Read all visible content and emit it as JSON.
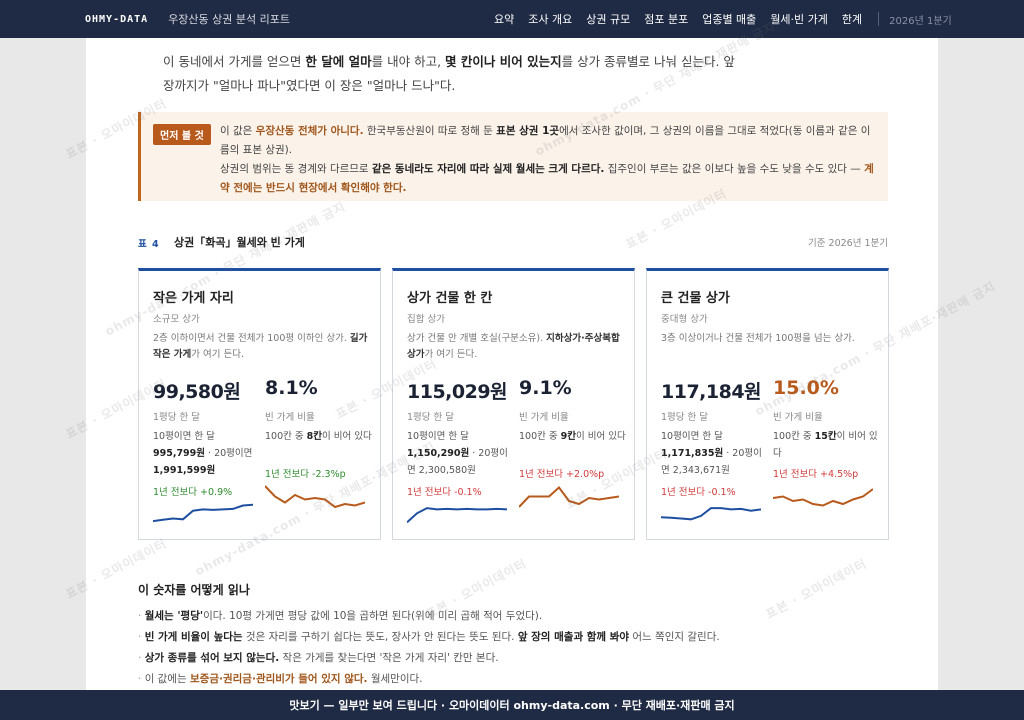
{
  "header": {
    "brand": "OHMY-DATA",
    "subtitle": "우장산동 상권 분석 리포트",
    "nav": [
      "요약",
      "조사 개요",
      "상권 규모",
      "점포 분포",
      "업종별 매출",
      "월세·빈 가게",
      "한계"
    ],
    "date": "2026년 1분기"
  },
  "intro": {
    "p1a": "이 동네에서 가게를 얻으면 ",
    "p1b": "한 달에 얼마",
    "p1c": "를 내야 하고, ",
    "p1d": "몇 칸이나 비어 있는지",
    "p1e": "를 상가 종류별로 나눠 싣는다. 앞",
    "p2": "장까지가 \"얼마나 파나\"였다면 이 장은 \"얼마나 드나\"다."
  },
  "notice": {
    "tag": "먼저 볼 것",
    "s1": "이 값은 ",
    "s2": "우장산동 전체가 아니다.",
    "s3": " 한국부동산원이 따로 정해 둔 ",
    "s4": "표본 상권 1곳",
    "s5": "에서 조사한 값이며, 그 상권의 이름을 그대로 적었다(동 이름과 같은 이름의 표본 상권).",
    "s6": "상권의 범위는 동 경계와 다르므로 ",
    "s7": "같은 동네라도 자리에 따라 실제 월세는 크게 다르다.",
    "s8": " 집주인이 부르는 값은 이보다 높을 수도 낮을 수도 있다 — ",
    "s9": "계약 전에는 반드시 현장에서 확인해야 한다."
  },
  "table": {
    "no": "표 4",
    "title": "상권「화곡」월세와 빈 가게",
    "base": "기준 2026년 1분기"
  },
  "cards": [
    {
      "title": "작은 가게 자리",
      "sub": "소규모 상가",
      "desc_a": "2층 이하이면서 건물 전체가 100평 이하인 상가. ",
      "desc_b": "길가 작은 가게",
      "desc_c": "가 여기 든다.",
      "rent": "99,580원",
      "rent_label": "1평당 한 달",
      "vac": "8.1%",
      "vac_label": "빈 가게 비율",
      "rent_detail_a": "10평이면 한 달 ",
      "rent_detail_b": "995,799원",
      "rent_detail_c": " · 20평이면 ",
      "rent_detail_d": "1,991,599원",
      "rent_change": "1년 전보다 +0.9%",
      "vac_detail_a": "100칸 중 ",
      "vac_detail_b": "8칸",
      "vac_detail_c": "이 비어 있다",
      "vac_change": "1년 전보다 -2.3%p",
      "rent_trend": [
        0.15,
        0.2,
        0.25,
        0.22,
        0.55,
        0.6,
        0.58,
        0.6,
        0.62,
        0.75,
        0.78
      ],
      "vac_trend": [
        0.9,
        0.55,
        0.35,
        0.6,
        0.45,
        0.5,
        0.45,
        0.2,
        0.3,
        0.25,
        0.35
      ],
      "rent_change_dir": "up",
      "vac_change_dir": "up",
      "vac_hot": false
    },
    {
      "title": "상가 건물 한 칸",
      "sub": "집합 상가",
      "desc_a": "상가 건물 안 개별 호실(구분소유). ",
      "desc_b": "지하상가·주상복합 상가",
      "desc_c": "가 여기 든다.",
      "rent": "115,029원",
      "rent_label": "1평당 한 달",
      "vac": "9.1%",
      "vac_label": "빈 가게 비율",
      "rent_detail_a": "10평이면 한 달 ",
      "rent_detail_b": "1,150,290원",
      "rent_detail_c": " · 20평이면 ",
      "rent_detail_d": "2,300,580원",
      "rent_change": "1년 전보다 -0.1%",
      "vac_detail_a": "100칸 중 ",
      "vac_detail_b": "9칸",
      "vac_detail_c": "이 비어 있다",
      "vac_change": "1년 전보다 +2.0%p",
      "rent_trend": [
        0.1,
        0.45,
        0.65,
        0.6,
        0.62,
        0.6,
        0.62,
        0.6,
        0.6,
        0.62,
        0.6
      ],
      "vac_trend": [
        0.2,
        0.55,
        0.55,
        0.55,
        0.85,
        0.4,
        0.3,
        0.5,
        0.45,
        0.5,
        0.55
      ],
      "rent_change_dir": "down",
      "vac_change_dir": "down",
      "vac_hot": false
    },
    {
      "title": "큰 건물 상가",
      "sub": "중대형 상가",
      "desc_a": "3층 이상이거나 건물 전체가 100평을 넘는 상가.",
      "desc_b": "",
      "desc_c": "",
      "rent": "117,184원",
      "rent_label": "1평당 한 달",
      "vac": "15.0%",
      "vac_label": "빈 가게 비율",
      "rent_detail_a": "10평이면 한 달 ",
      "rent_detail_b": "1,171,835원",
      "rent_detail_c": " · 20평이면 ",
      "rent_detail_d": "2,343,671원",
      "rent_change": "1년 전보다 -0.1%",
      "vac_detail_a": "100칸 중 ",
      "vac_detail_b": "15칸",
      "vac_detail_c": "이 비어 있다",
      "vac_change": "1년 전보다 +4.5%p",
      "rent_trend": [
        0.3,
        0.28,
        0.25,
        0.22,
        0.35,
        0.65,
        0.65,
        0.6,
        0.62,
        0.55,
        0.6
      ],
      "vac_trend": [
        0.5,
        0.55,
        0.4,
        0.45,
        0.3,
        0.25,
        0.4,
        0.3,
        0.45,
        0.55,
        0.8
      ],
      "rent_change_dir": "down",
      "vac_change_dir": "down",
      "vac_hot": true
    }
  ],
  "howto": {
    "title": "이 숫자를 어떻게 읽나",
    "b1a": "월세는 '평당'",
    "b1b": "이다. 10평 가게면 평당 값에 10을 곱하면 된다(위에 미리 곱해 적어 두었다).",
    "b2a": "빈 가게 비율이 높다는",
    "b2b": " 것은 자리를 구하기 쉽다는 뜻도, 장사가 안 된다는 뜻도 된다. ",
    "b2c": "앞 장의 매출과 함께 봐야",
    "b2d": " 어느 쪽인지 갈린다.",
    "b3a": "상가 종류를 섞어 보지 않는다.",
    "b3b": " 작은 가게를 찾는다면 '작은 가게 자리' 칸만 본다.",
    "b4a": "이 값에는 ",
    "b4b": "보증금·권리금·관리비가 들어 있지 않다.",
    "b4c": " 월세만이다."
  },
  "watermark": {
    "text_a": "표본 · 오마이데이터",
    "text_b": "ohmy-data.com · 무단 재배포·재판매 금지"
  },
  "footer": "맛보기 — 일부만 보여 드립니다 · 오마이데이터 ohmy-data.com · 무단 재배포·재판매 금지",
  "colors": {
    "navy": "#1f2a44",
    "accent_blue": "#1f4fa0",
    "accent_orange": "#b85a1c",
    "up_green": "#2e8b2e",
    "down_red": "#d23a3a"
  }
}
